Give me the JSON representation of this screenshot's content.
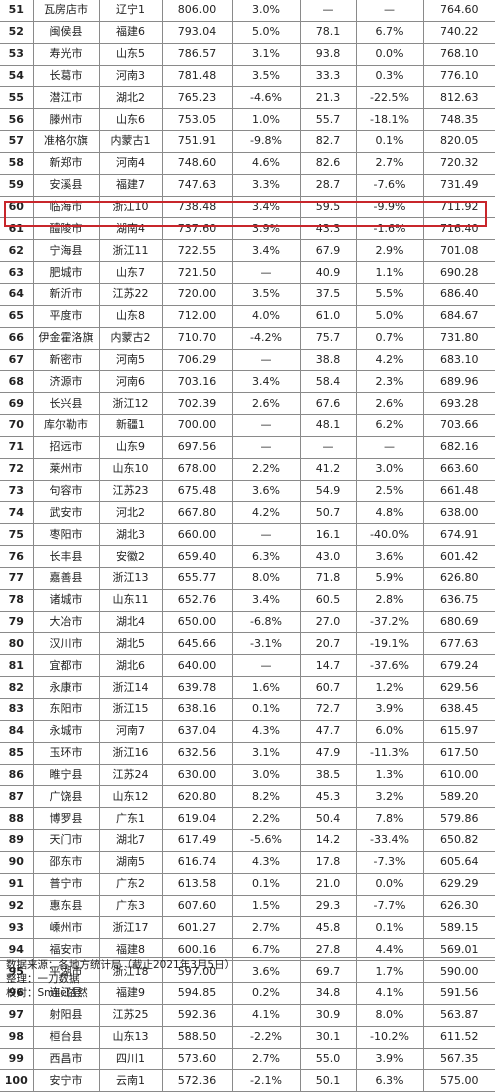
{
  "highlight_color": "#c8262b",
  "table": {
    "rows": [
      [
        "51",
        "瓦房店市",
        "辽宁1",
        "806.00",
        "3.0%",
        "—",
        "—",
        "764.60"
      ],
      [
        "52",
        "闽侯县",
        "福建6",
        "793.04",
        "5.0%",
        "78.1",
        "6.7%",
        "740.22"
      ],
      [
        "53",
        "寿光市",
        "山东5",
        "786.57",
        "3.1%",
        "93.8",
        "0.0%",
        "768.10"
      ],
      [
        "54",
        "长葛市",
        "河南3",
        "781.48",
        "3.5%",
        "33.3",
        "0.3%",
        "776.10"
      ],
      [
        "55",
        "潜江市",
        "湖北2",
        "765.23",
        "-4.6%",
        "21.3",
        "-22.5%",
        "812.63"
      ],
      [
        "56",
        "滕州市",
        "山东6",
        "753.05",
        "1.0%",
        "55.7",
        "-18.1%",
        "748.35"
      ],
      [
        "57",
        "准格尔旗",
        "内蒙古1",
        "751.91",
        "-9.8%",
        "82.7",
        "0.1%",
        "820.05"
      ],
      [
        "58",
        "新郑市",
        "河南4",
        "748.60",
        "4.6%",
        "82.6",
        "2.7%",
        "720.32"
      ],
      [
        "59",
        "安溪县",
        "福建7",
        "747.63",
        "3.3%",
        "28.7",
        "-7.6%",
        "731.49"
      ],
      [
        "60",
        "临海市",
        "浙江10",
        "738.48",
        "3.4%",
        "59.5",
        "-9.9%",
        "711.92"
      ],
      [
        "61",
        "醴陵市",
        "湖南4",
        "737.60",
        "3.9%",
        "43.3",
        "-1.6%",
        "716.40"
      ],
      [
        "62",
        "宁海县",
        "浙江11",
        "722.55",
        "3.4%",
        "67.9",
        "2.9%",
        "701.08"
      ],
      [
        "63",
        "肥城市",
        "山东7",
        "721.50",
        "—",
        "40.9",
        "1.1%",
        "690.28"
      ],
      [
        "64",
        "新沂市",
        "江苏22",
        "720.00",
        "3.5%",
        "37.5",
        "5.5%",
        "686.40"
      ],
      [
        "65",
        "平度市",
        "山东8",
        "712.00",
        "4.0%",
        "61.0",
        "5.0%",
        "684.67"
      ],
      [
        "66",
        "伊金霍洛旗",
        "内蒙古2",
        "710.70",
        "-4.2%",
        "75.7",
        "0.7%",
        "731.80"
      ],
      [
        "67",
        "新密市",
        "河南5",
        "706.29",
        "—",
        "38.8",
        "4.2%",
        "683.10"
      ],
      [
        "68",
        "济源市",
        "河南6",
        "703.16",
        "3.4%",
        "58.4",
        "2.3%",
        "689.96"
      ],
      [
        "69",
        "长兴县",
        "浙江12",
        "702.39",
        "2.6%",
        "67.6",
        "2.6%",
        "693.28"
      ],
      [
        "70",
        "库尔勒市",
        "新疆1",
        "700.00",
        "—",
        "48.1",
        "6.2%",
        "703.66"
      ],
      [
        "71",
        "招远市",
        "山东9",
        "697.56",
        "—",
        "—",
        "—",
        "682.16"
      ],
      [
        "72",
        "莱州市",
        "山东10",
        "678.00",
        "2.2%",
        "41.2",
        "3.0%",
        "663.60"
      ],
      [
        "73",
        "句容市",
        "江苏23",
        "675.48",
        "3.6%",
        "54.9",
        "2.5%",
        "661.48"
      ],
      [
        "74",
        "武安市",
        "河北2",
        "667.80",
        "4.2%",
        "50.7",
        "4.8%",
        "638.00"
      ],
      [
        "75",
        "枣阳市",
        "湖北3",
        "660.00",
        "—",
        "16.1",
        "-40.0%",
        "674.91"
      ],
      [
        "76",
        "长丰县",
        "安徽2",
        "659.40",
        "6.3%",
        "43.0",
        "3.6%",
        "601.42"
      ],
      [
        "77",
        "嘉善县",
        "浙江13",
        "655.77",
        "8.0%",
        "71.8",
        "5.9%",
        "626.80"
      ],
      [
        "78",
        "诸城市",
        "山东11",
        "652.76",
        "3.4%",
        "60.5",
        "2.8%",
        "636.75"
      ],
      [
        "79",
        "大冶市",
        "湖北4",
        "650.00",
        "-6.8%",
        "27.0",
        "-37.2%",
        "680.69"
      ],
      [
        "80",
        "汉川市",
        "湖北5",
        "645.66",
        "-3.1%",
        "20.7",
        "-19.1%",
        "677.63"
      ],
      [
        "81",
        "宜都市",
        "湖北6",
        "640.00",
        "—",
        "14.7",
        "-37.6%",
        "679.24"
      ],
      [
        "82",
        "永康市",
        "浙江14",
        "639.78",
        "1.6%",
        "60.7",
        "1.2%",
        "629.56"
      ],
      [
        "83",
        "东阳市",
        "浙江15",
        "638.16",
        "0.1%",
        "72.7",
        "3.9%",
        "638.45"
      ],
      [
        "84",
        "永城市",
        "河南7",
        "637.04",
        "4.3%",
        "47.7",
        "6.0%",
        "615.97"
      ],
      [
        "85",
        "玉环市",
        "浙江16",
        "632.56",
        "3.1%",
        "47.9",
        "-11.3%",
        "617.50"
      ],
      [
        "86",
        "睢宁县",
        "江苏24",
        "630.00",
        "3.0%",
        "38.5",
        "1.3%",
        "610.00"
      ],
      [
        "87",
        "广饶县",
        "山东12",
        "620.80",
        "8.2%",
        "45.3",
        "3.2%",
        "589.20"
      ],
      [
        "88",
        "博罗县",
        "广东1",
        "619.04",
        "2.2%",
        "50.4",
        "7.8%",
        "579.86"
      ],
      [
        "89",
        "天门市",
        "湖北7",
        "617.49",
        "-5.6%",
        "14.2",
        "-33.4%",
        "650.82"
      ],
      [
        "90",
        "邵东市",
        "湖南5",
        "616.74",
        "4.3%",
        "17.8",
        "-7.3%",
        "605.64"
      ],
      [
        "91",
        "普宁市",
        "广东2",
        "613.58",
        "0.1%",
        "21.0",
        "0.0%",
        "629.29"
      ],
      [
        "92",
        "惠东县",
        "广东3",
        "607.60",
        "1.5%",
        "29.3",
        "-7.7%",
        "626.30"
      ],
      [
        "93",
        "嵊州市",
        "浙江17",
        "601.27",
        "2.7%",
        "45.8",
        "0.1%",
        "589.15"
      ],
      [
        "94",
        "福安市",
        "福建8",
        "600.16",
        "6.7%",
        "27.8",
        "4.4%",
        "569.01"
      ],
      [
        "95",
        "平湖市",
        "浙江18",
        "597.00",
        "3.6%",
        "69.7",
        "1.7%",
        "590.00"
      ],
      [
        "96",
        "连江县",
        "福建9",
        "594.85",
        "0.2%",
        "34.8",
        "4.1%",
        "591.56"
      ],
      [
        "97",
        "射阳县",
        "江苏25",
        "592.36",
        "4.1%",
        "30.9",
        "8.0%",
        "563.87"
      ],
      [
        "98",
        "桓台县",
        "山东13",
        "588.50",
        "-2.2%",
        "30.1",
        "-10.2%",
        "611.52"
      ],
      [
        "99",
        "西昌市",
        "四川1",
        "573.60",
        "2.7%",
        "55.0",
        "3.9%",
        "567.35"
      ],
      [
        "100",
        "安宁市",
        "云南1",
        "572.36",
        "-2.1%",
        "50.1",
        "6.3%",
        "575.00"
      ]
    ]
  },
  "footer": {
    "source": "数据来源：各地方统计局（截止2021年3月5日）",
    "compiler": "整理：一刀数据",
    "proofreader": "校对：Smile依然"
  }
}
